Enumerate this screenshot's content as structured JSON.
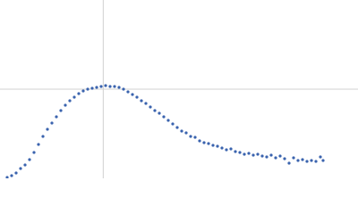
{
  "chart_data": {
    "type": "scatter",
    "xlim": [
      0,
      6
    ],
    "ylim": [
      0,
      2.2
    ],
    "reference_lines": {
      "x": 1.73,
      "y": 1.1,
      "color": "#d0d0d0"
    },
    "series": [
      {
        "color": "#3a63ae",
        "x": [
          0.12,
          0.195,
          0.27,
          0.345,
          0.42,
          0.495,
          0.57,
          0.645,
          0.72,
          0.795,
          0.87,
          0.945,
          1.02,
          1.095,
          1.17,
          1.245,
          1.32,
          1.395,
          1.47,
          1.545,
          1.62,
          1.695,
          1.77,
          1.845,
          1.92,
          1.995,
          2.07,
          2.145,
          2.22,
          2.295,
          2.37,
          2.445,
          2.52,
          2.595,
          2.67,
          2.745,
          2.82,
          2.895,
          2.97,
          3.045,
          3.12,
          3.195,
          3.27,
          3.345,
          3.42,
          3.495,
          3.57,
          3.645,
          3.72,
          3.795,
          3.87,
          3.945,
          4.02,
          4.095,
          4.17,
          4.245,
          4.32,
          4.395,
          4.47,
          4.545,
          4.62,
          4.695,
          4.77,
          4.845,
          4.92,
          4.995,
          5.07,
          5.145,
          5.22,
          5.295,
          5.37,
          5.415
        ],
        "values": [
          0.011,
          0.033,
          0.066,
          0.121,
          0.165,
          0.231,
          0.319,
          0.418,
          0.517,
          0.605,
          0.682,
          0.759,
          0.836,
          0.902,
          0.957,
          1.001,
          1.045,
          1.078,
          1.1,
          1.111,
          1.122,
          1.133,
          1.144,
          1.133,
          1.133,
          1.122,
          1.1,
          1.067,
          1.034,
          1.001,
          0.957,
          0.924,
          0.88,
          0.836,
          0.803,
          0.759,
          0.715,
          0.671,
          0.627,
          0.583,
          0.561,
          0.517,
          0.506,
          0.462,
          0.44,
          0.429,
          0.407,
          0.396,
          0.374,
          0.352,
          0.363,
          0.33,
          0.319,
          0.297,
          0.308,
          0.286,
          0.297,
          0.275,
          0.264,
          0.286,
          0.253,
          0.275,
          0.242,
          0.187,
          0.253,
          0.22,
          0.231,
          0.209,
          0.22,
          0.209,
          0.264,
          0.22
        ]
      }
    ]
  }
}
